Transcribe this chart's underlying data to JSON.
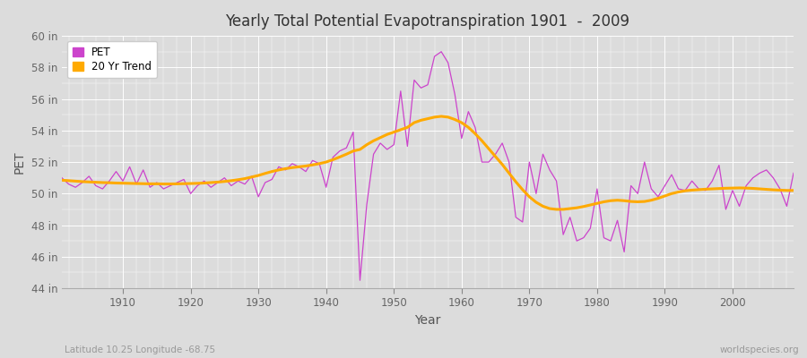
{
  "title": "Yearly Total Potential Evapotranspiration 1901  -  2009",
  "xlabel": "Year",
  "ylabel": "PET",
  "subtitle_left": "Latitude 10.25 Longitude -68.75",
  "subtitle_right": "worldspecies.org",
  "pet_color": "#cc44cc",
  "trend_color": "#ffaa00",
  "bg_color": "#dcdcdc",
  "plot_bg_color": "#dcdcdc",
  "ylim": [
    44,
    60
  ],
  "xlim": [
    1901,
    2009
  ],
  "yticks": [
    44,
    46,
    48,
    50,
    52,
    54,
    56,
    58,
    60
  ],
  "ytick_labels": [
    "44 in",
    "46 in",
    "48 in",
    "50 in",
    "52 in",
    "54 in",
    "56 in",
    "58 in",
    "60 in"
  ],
  "xticks": [
    1910,
    1920,
    1930,
    1940,
    1950,
    1960,
    1970,
    1980,
    1990,
    2000
  ],
  "years": [
    1901,
    1902,
    1903,
    1904,
    1905,
    1906,
    1907,
    1908,
    1909,
    1910,
    1911,
    1912,
    1913,
    1914,
    1915,
    1916,
    1917,
    1918,
    1919,
    1920,
    1921,
    1922,
    1923,
    1924,
    1925,
    1926,
    1927,
    1928,
    1929,
    1930,
    1931,
    1932,
    1933,
    1934,
    1935,
    1936,
    1937,
    1938,
    1939,
    1940,
    1941,
    1942,
    1943,
    1944,
    1945,
    1946,
    1947,
    1948,
    1949,
    1950,
    1951,
    1952,
    1953,
    1954,
    1955,
    1956,
    1957,
    1958,
    1959,
    1960,
    1961,
    1962,
    1963,
    1964,
    1965,
    1966,
    1967,
    1968,
    1969,
    1970,
    1971,
    1972,
    1973,
    1974,
    1975,
    1976,
    1977,
    1978,
    1979,
    1980,
    1981,
    1982,
    1983,
    1984,
    1985,
    1986,
    1987,
    1988,
    1989,
    1990,
    1991,
    1992,
    1993,
    1994,
    1995,
    1996,
    1997,
    1998,
    1999,
    2000,
    2001,
    2002,
    2003,
    2004,
    2005,
    2006,
    2007,
    2008,
    2009
  ],
  "pet_values": [
    51.0,
    50.6,
    50.4,
    50.7,
    51.1,
    50.5,
    50.3,
    50.8,
    51.4,
    50.8,
    51.7,
    50.6,
    51.5,
    50.4,
    50.7,
    50.3,
    50.5,
    50.7,
    50.9,
    50.0,
    50.5,
    50.8,
    50.4,
    50.7,
    51.0,
    50.5,
    50.8,
    50.6,
    51.1,
    49.8,
    50.7,
    50.9,
    51.7,
    51.5,
    51.9,
    51.7,
    51.4,
    52.1,
    51.9,
    50.4,
    52.3,
    52.7,
    52.9,
    53.9,
    44.5,
    49.3,
    52.5,
    53.2,
    52.8,
    53.1,
    56.5,
    53.0,
    57.2,
    56.7,
    56.9,
    58.7,
    59.0,
    58.3,
    56.3,
    53.5,
    55.2,
    54.2,
    52.0,
    52.0,
    52.5,
    53.2,
    52.0,
    48.5,
    48.2,
    52.0,
    50.0,
    52.5,
    51.5,
    50.8,
    47.4,
    48.5,
    47.0,
    47.2,
    47.8,
    50.3,
    47.2,
    47.0,
    48.3,
    46.3,
    50.5,
    50.0,
    52.0,
    50.3,
    49.8,
    50.5,
    51.2,
    50.3,
    50.2,
    50.8,
    50.3,
    50.2,
    50.8,
    51.8,
    49.0,
    50.2,
    49.2,
    50.5,
    51.0,
    51.3,
    51.5,
    51.0,
    50.3,
    49.2,
    51.3
  ],
  "trend_values": [
    50.85,
    50.82,
    50.79,
    50.76,
    50.74,
    50.72,
    50.7,
    50.69,
    50.67,
    50.66,
    50.65,
    50.64,
    50.63,
    50.62,
    50.62,
    50.61,
    50.61,
    50.62,
    50.63,
    50.64,
    50.65,
    50.67,
    50.7,
    50.73,
    50.77,
    50.82,
    50.88,
    50.95,
    51.05,
    51.15,
    51.28,
    51.4,
    51.5,
    51.58,
    51.65,
    51.7,
    51.75,
    51.82,
    51.9,
    52.0,
    52.15,
    52.32,
    52.5,
    52.7,
    52.8,
    53.1,
    53.35,
    53.55,
    53.75,
    53.9,
    54.05,
    54.2,
    54.5,
    54.65,
    54.75,
    54.85,
    54.9,
    54.85,
    54.7,
    54.5,
    54.2,
    53.8,
    53.35,
    52.85,
    52.35,
    51.85,
    51.3,
    50.75,
    50.25,
    49.8,
    49.45,
    49.2,
    49.05,
    49.0,
    49.0,
    49.05,
    49.1,
    49.18,
    49.28,
    49.38,
    49.48,
    49.55,
    49.58,
    49.55,
    49.5,
    49.48,
    49.5,
    49.58,
    49.7,
    49.85,
    50.0,
    50.1,
    50.18,
    50.22,
    50.25,
    50.28,
    50.3,
    50.32,
    50.34,
    50.35,
    50.36,
    50.35,
    50.33,
    50.3,
    50.27,
    50.24,
    50.22,
    50.2,
    50.2
  ]
}
